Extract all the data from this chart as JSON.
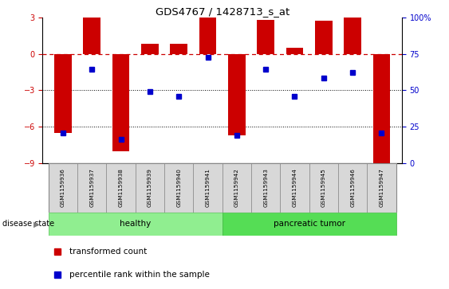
{
  "title": "GDS4767 / 1428713_s_at",
  "samples": [
    "GSM1159936",
    "GSM1159937",
    "GSM1159938",
    "GSM1159939",
    "GSM1159940",
    "GSM1159941",
    "GSM1159942",
    "GSM1159943",
    "GSM1159944",
    "GSM1159945",
    "GSM1159946",
    "GSM1159947"
  ],
  "bar_values": [
    -6.5,
    3.0,
    -8.0,
    0.8,
    0.8,
    3.0,
    -6.7,
    2.8,
    0.5,
    2.7,
    3.0,
    -9.0
  ],
  "dot_values": [
    -6.5,
    -1.3,
    -7.0,
    -3.1,
    -3.5,
    -0.3,
    -6.7,
    -1.3,
    -3.5,
    -2.0,
    -1.5,
    -6.5
  ],
  "bar_color": "#CC0000",
  "dot_color": "#0000CC",
  "dashed_line_color": "#CC0000",
  "healthy_color": "#90EE90",
  "tumor_color": "#55DD55",
  "ylim": [
    -9,
    3
  ],
  "yticks_left": [
    3,
    0,
    -3,
    -6,
    -9
  ],
  "yticks_right": [
    100,
    75,
    50,
    25,
    0
  ],
  "grid_values": [
    -3,
    -6
  ],
  "legend_label_bar": "transformed count",
  "legend_label_dot": "percentile rank within the sample",
  "healthy_label": "healthy",
  "tumor_label": "pancreatic tumor",
  "bar_width": 0.6
}
